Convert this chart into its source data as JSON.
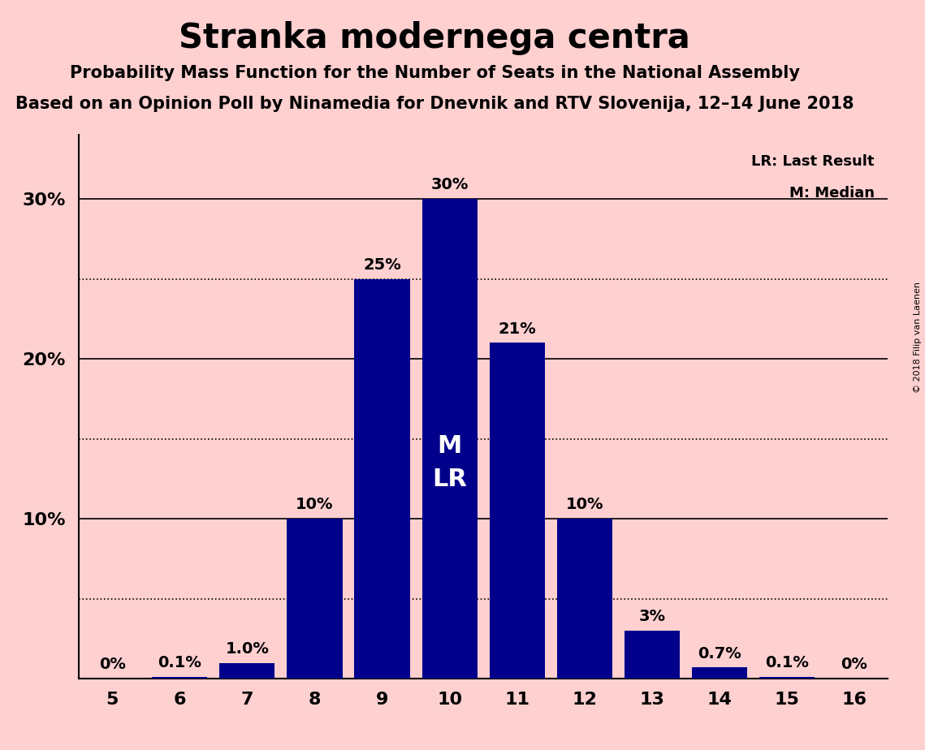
{
  "title": "Stranka modernega centra",
  "subtitle1": "Probability Mass Function for the Number of Seats in the National Assembly",
  "subtitle2": "Based on an Opinion Poll by Ninamedia for Dnevnik and RTV Slovenija, 12–14 June 2018",
  "copyright": "© 2018 Filip van Laenen",
  "seats": [
    5,
    6,
    7,
    8,
    9,
    10,
    11,
    12,
    13,
    14,
    15,
    16
  ],
  "probabilities": [
    0.0,
    0.001,
    0.01,
    0.1,
    0.25,
    0.3,
    0.21,
    0.1,
    0.03,
    0.007,
    0.001,
    0.0
  ],
  "labels": [
    "0%",
    "0.1%",
    "1.0%",
    "10%",
    "25%",
    "30%",
    "21%",
    "10%",
    "3%",
    "0.7%",
    "0.1%",
    "0%"
  ],
  "bar_color": "#00008B",
  "background_color": "#FFD0D0",
  "median_seat": 10,
  "legend_lr": "LR: Last Result",
  "legend_m": "M: Median",
  "ytick_positions": [
    0.1,
    0.2,
    0.3
  ],
  "ytick_labels": [
    "10%",
    "20%",
    "30%"
  ],
  "solid_grid": [
    0.1,
    0.2,
    0.3
  ],
  "dotted_grid": [
    0.05,
    0.15,
    0.25
  ],
  "ylim": [
    0,
    0.34
  ],
  "xlim": [
    4.5,
    16.5
  ]
}
